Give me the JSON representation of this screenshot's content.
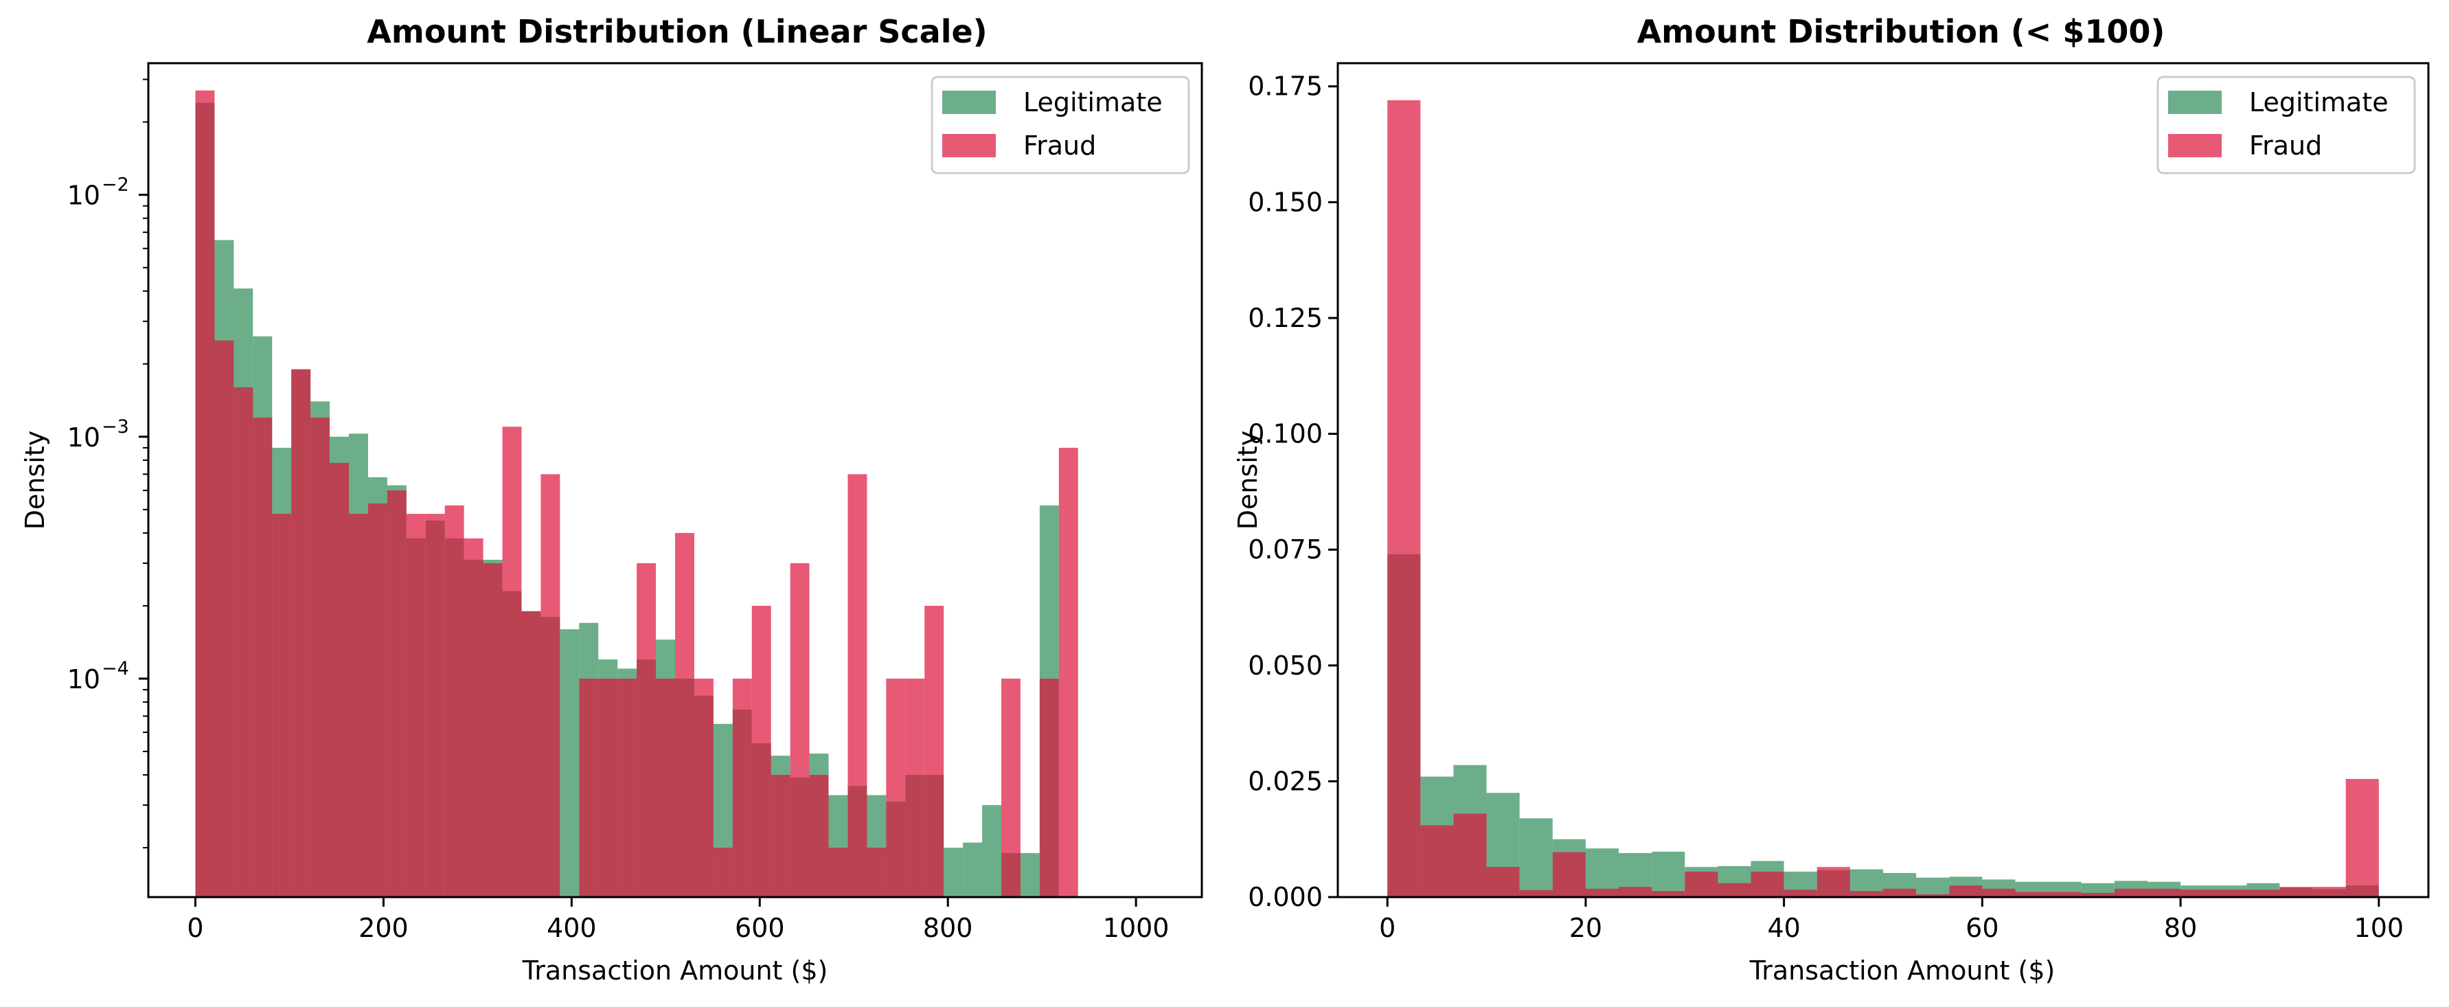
{
  "colors": {
    "legitimate": "#2e8b57",
    "fraud": "#dc143c"
  },
  "chart_data": [
    {
      "type": "histogram",
      "title": "Amount Distribution (Linear Scale)",
      "xlabel": "Transaction Amount ($)",
      "ylabel": "Density",
      "xlim": [
        -50,
        1070
      ],
      "ylim": [
        1.25e-05,
        0.035
      ],
      "yscale": "log",
      "x_ticks": [
        "0",
        "200",
        "400",
        "600",
        "800",
        "1000"
      ],
      "y_ticks": [
        {
          "base": "10",
          "exp": "−2"
        },
        {
          "base": "10",
          "exp": "−3"
        },
        {
          "base": "10",
          "exp": "−4"
        }
      ],
      "bin_edges_range": [
        0,
        1020
      ],
      "bin_count": 50,
      "legend": {
        "position": "top-right",
        "entries": [
          "Legitimate",
          "Fraud"
        ]
      },
      "series": [
        {
          "name": "Legitimate",
          "values": [
            0.024,
            0.0065,
            0.0041,
            0.0026,
            0.0009,
            0.0019,
            0.0014,
            0.001,
            0.00103,
            0.00068,
            0.00063,
            0.00038,
            0.00045,
            0.00038,
            0.00031,
            0.00031,
            0.00023,
            0.00019,
            0.00018,
            0.00016,
            0.00017,
            0.00012,
            0.00011,
            0.00012,
            0.000145,
            0.0001,
            8.5e-05,
            6.5e-05,
            7.45e-05,
            5.4e-05,
            4.8e-05,
            3.9e-05,
            4.9e-05,
            3.3e-05,
            3.6e-05,
            3.3e-05,
            3.1e-05,
            4e-05,
            4e-05,
            2e-05,
            2.1e-05,
            3e-05,
            1.9e-05,
            1.9e-05,
            0.00052,
            0.0,
            0.0,
            0.0,
            0.0,
            0.0
          ]
        },
        {
          "name": "Fraud",
          "values": [
            0.027,
            0.0025,
            0.0016,
            0.0012,
            0.00048,
            0.0019,
            0.0012,
            0.00078,
            0.00048,
            0.00053,
            0.0006,
            0.00048,
            0.00048,
            0.00052,
            0.00038,
            0.0003,
            0.0011,
            0.00019,
            0.0007,
            1e-05,
            0.0001,
            0.0001,
            0.0001,
            0.0003,
            0.0001,
            0.0004,
            0.0001,
            2e-05,
            0.0001,
            0.0002,
            4e-05,
            0.0003,
            4e-05,
            2e-05,
            0.0007,
            2e-05,
            0.0001,
            0.0001,
            0.0002,
            1e-05,
            1e-05,
            1e-05,
            0.0001,
            1e-05,
            0.0001,
            0.0009,
            0.0,
            0.0,
            0.0,
            0.0
          ]
        }
      ]
    },
    {
      "type": "histogram",
      "title": "Amount Distribution (< $100)",
      "xlabel": "Transaction Amount ($)",
      "ylabel": "Density",
      "xlim": [
        -5,
        105
      ],
      "ylim": [
        0,
        0.18
      ],
      "yscale": "linear",
      "x_ticks": [
        0,
        20,
        40,
        60,
        80,
        100
      ],
      "y_ticks": [
        0.0,
        0.025,
        0.05,
        0.075,
        0.1,
        0.125,
        0.15,
        0.175
      ],
      "y_tick_labels": [
        "0.000",
        "0.025",
        "0.050",
        "0.075",
        "0.100",
        "0.125",
        "0.150",
        "0.175"
      ],
      "bin_edges_range": [
        0,
        100
      ],
      "bin_count": 30,
      "legend": {
        "position": "top-right",
        "entries": [
          "Legitimate",
          "Fraud"
        ]
      },
      "series": [
        {
          "name": "Legitimate",
          "values": [
            0.074,
            0.026,
            0.0285,
            0.0225,
            0.017,
            0.0125,
            0.0105,
            0.0095,
            0.0098,
            0.0065,
            0.0067,
            0.0078,
            0.0055,
            0.0058,
            0.006,
            0.0052,
            0.0042,
            0.0044,
            0.0038,
            0.0033,
            0.0033,
            0.003,
            0.0035,
            0.0033,
            0.0025,
            0.0025,
            0.003,
            0.002,
            0.0017,
            0.0025
          ]
        },
        {
          "name": "Fraud",
          "values": [
            0.172,
            0.0155,
            0.018,
            0.0065,
            0.0015,
            0.0097,
            0.0018,
            0.0022,
            0.0013,
            0.0055,
            0.003,
            0.0055,
            0.0016,
            0.0065,
            0.0013,
            0.0018,
            0.0006,
            0.0025,
            0.0018,
            0.0011,
            0.0011,
            0.0009,
            0.0018,
            0.0018,
            0.0016,
            0.0016,
            0.0016,
            0.0022,
            0.0022,
            0.0255
          ]
        }
      ]
    }
  ]
}
